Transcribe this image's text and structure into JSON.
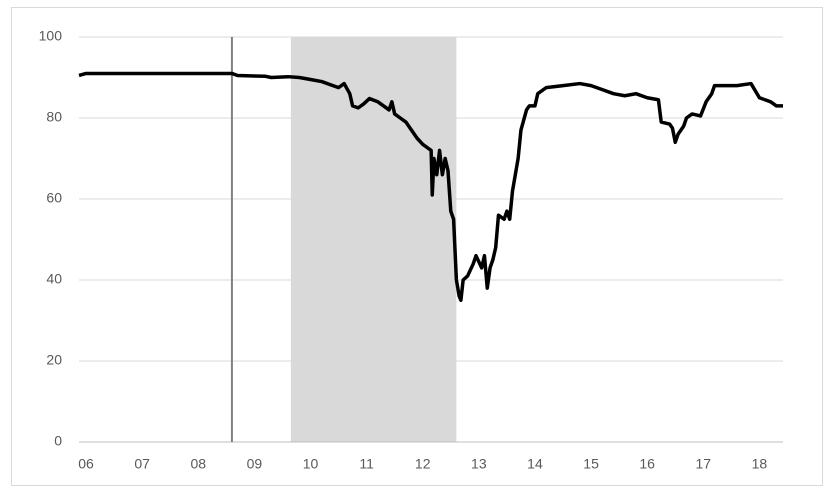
{
  "chart_data": {
    "type": "line",
    "x": [
      5.875,
      6.0,
      8.6,
      8.7,
      9.2,
      9.3,
      9.6,
      9.8,
      10.0,
      10.2,
      10.4,
      10.5,
      10.6,
      10.7,
      10.75,
      10.85,
      10.95,
      11.05,
      11.2,
      11.3,
      11.4,
      11.45,
      11.5,
      11.6,
      11.7,
      11.8,
      11.9,
      12.0,
      12.1,
      12.15,
      12.17,
      12.2,
      12.25,
      12.3,
      12.35,
      12.4,
      12.45,
      12.5,
      12.55,
      12.6,
      12.65,
      12.68,
      12.72,
      12.8,
      12.9,
      12.95,
      13.05,
      13.1,
      13.15,
      13.2,
      13.25,
      13.3,
      13.35,
      13.45,
      13.5,
      13.55,
      13.6,
      13.7,
      13.75,
      13.85,
      13.9,
      14.0,
      14.05,
      14.2,
      14.5,
      14.8,
      15.0,
      15.2,
      15.4,
      15.6,
      15.8,
      16.0,
      16.2,
      16.25,
      16.4,
      16.45,
      16.5,
      16.55,
      16.65,
      16.7,
      16.8,
      16.95,
      17.05,
      17.15,
      17.2,
      17.6,
      17.85,
      18.0,
      18.2,
      18.3,
      18.42
    ],
    "series": [
      {
        "color": "#000000",
        "values": [
          90.5,
          91,
          91,
          90.5,
          90.3,
          90,
          90.2,
          90,
          89.5,
          89,
          88,
          87.5,
          88.5,
          86,
          83,
          82.5,
          83.5,
          84.8,
          84,
          83,
          82,
          84,
          81,
          80,
          79,
          77,
          75,
          73.5,
          72.5,
          72,
          61,
          70,
          66,
          72,
          66,
          70,
          67,
          57,
          55,
          40,
          36,
          35,
          40,
          41,
          44,
          46,
          43,
          46,
          38,
          43,
          45,
          48,
          56,
          55,
          57,
          55,
          62,
          70,
          77,
          82,
          83,
          83,
          86,
          87.5,
          88,
          88.5,
          88,
          87,
          86,
          85.5,
          86,
          85,
          84.5,
          79,
          78.5,
          77.5,
          74,
          76,
          78,
          80,
          81,
          80.5,
          84,
          86,
          88,
          88,
          88.5,
          85,
          84,
          83,
          83
        ]
      }
    ],
    "xlim": [
      5.875,
      18.42
    ],
    "xticks": [
      {
        "value": 6,
        "label": "06"
      },
      {
        "value": 7,
        "label": "07"
      },
      {
        "value": 8,
        "label": "08"
      },
      {
        "value": 9,
        "label": "09"
      },
      {
        "value": 10,
        "label": "10"
      },
      {
        "value": 11,
        "label": "11"
      },
      {
        "value": 12,
        "label": "12"
      },
      {
        "value": 13,
        "label": "13"
      },
      {
        "value": 14,
        "label": "14"
      },
      {
        "value": 15,
        "label": "15"
      },
      {
        "value": 16,
        "label": "16"
      },
      {
        "value": 17,
        "label": "17"
      },
      {
        "value": 18,
        "label": "18"
      }
    ],
    "ylim": [
      0,
      100
    ],
    "yticks": [
      0,
      20,
      40,
      60,
      80,
      100
    ],
    "grid": true,
    "vlines": [
      8.6
    ],
    "shaded_ranges": [
      [
        9.65,
        12.6
      ]
    ]
  }
}
